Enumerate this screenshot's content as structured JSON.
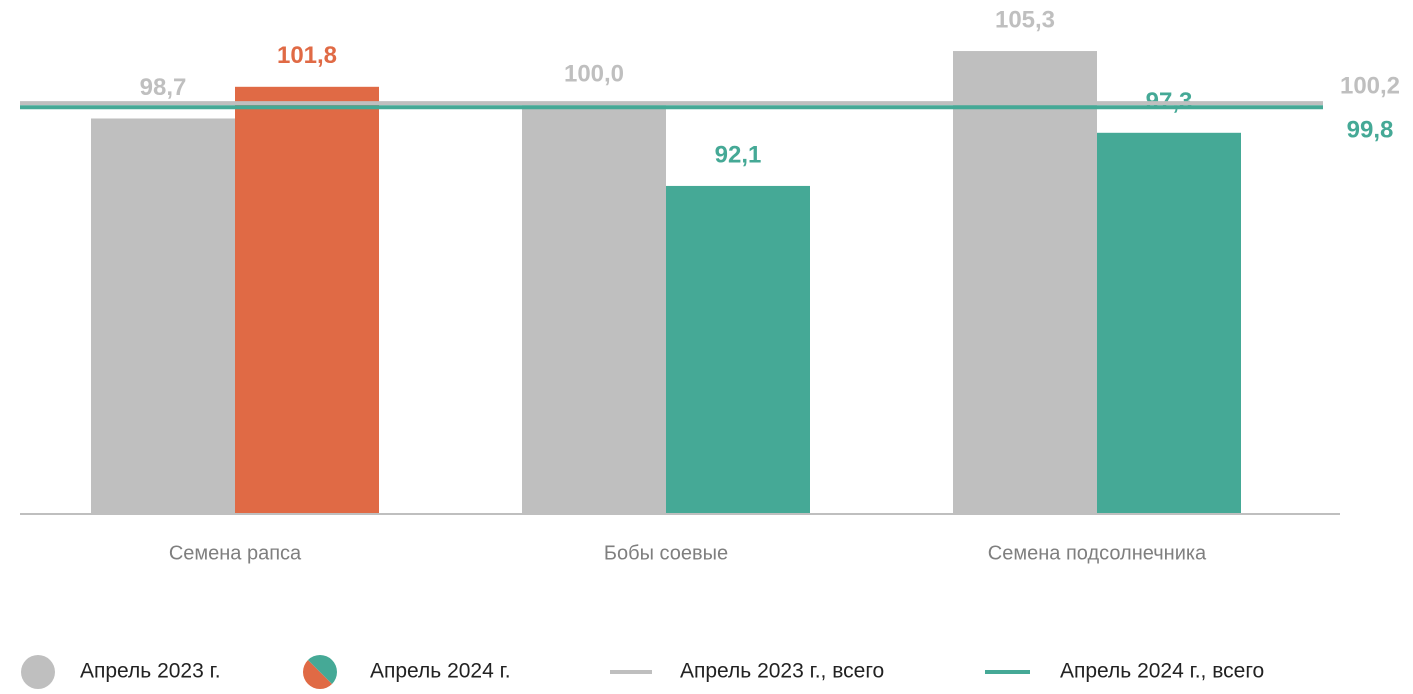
{
  "chart_data": {
    "type": "bar",
    "categories": [
      "Семена рапса",
      "Бобы соевые",
      "Семена подсолнечника"
    ],
    "series": [
      {
        "name": "Апрель 2023 г.",
        "color": "#bfbfbf",
        "values": [
          98.7,
          100.0,
          105.3
        ],
        "value_labels": [
          "98,7",
          "100,0",
          "105,3"
        ]
      },
      {
        "name": "Апрель 2024 г.",
        "color": "#45a996",
        "colors": [
          "#e06a45",
          "#45a996",
          "#45a996"
        ],
        "values": [
          101.8,
          92.1,
          97.3
        ],
        "value_labels": [
          "101,8",
          "92,1",
          "97,3"
        ]
      }
    ],
    "reference_lines": [
      {
        "name": "Апрель 2023 г., всего",
        "value": 100.2,
        "value_label": "100,2",
        "color": "#bfbfbf"
      },
      {
        "name": "Апрель 2024 г., всего",
        "value": 99.8,
        "value_label": "99,8",
        "color": "#45a996"
      }
    ],
    "ylim": [
      60,
      110
    ]
  }
}
